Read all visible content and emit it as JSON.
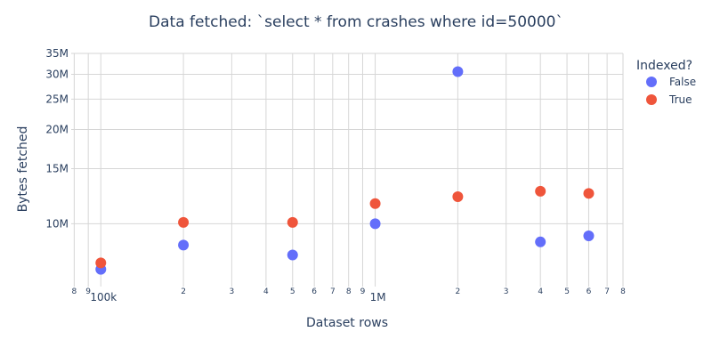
{
  "chart_data": {
    "type": "scatter",
    "title": "Data fetched: `select * from crashes where id=50000`",
    "xlabel": "Dataset rows",
    "ylabel": "Bytes fetched",
    "x_scale": "log",
    "y_scale": "log",
    "xlim": [
      78000,
      8000000
    ],
    "ylim": [
      6300000,
      35000000
    ],
    "x_ticks": [
      {
        "value": 80000,
        "label": "8",
        "minor": true
      },
      {
        "value": 90000,
        "label": "9",
        "minor": true
      },
      {
        "value": 100000,
        "label": "100k",
        "minor": false
      },
      {
        "value": 200000,
        "label": "2",
        "minor": true
      },
      {
        "value": 300000,
        "label": "3",
        "minor": true
      },
      {
        "value": 400000,
        "label": "4",
        "minor": true
      },
      {
        "value": 500000,
        "label": "5",
        "minor": true
      },
      {
        "value": 600000,
        "label": "6",
        "minor": true
      },
      {
        "value": 700000,
        "label": "7",
        "minor": true
      },
      {
        "value": 800000,
        "label": "8",
        "minor": true
      },
      {
        "value": 900000,
        "label": "9",
        "minor": true
      },
      {
        "value": 1000000,
        "label": "1M",
        "minor": false
      },
      {
        "value": 2000000,
        "label": "2",
        "minor": true
      },
      {
        "value": 3000000,
        "label": "3",
        "minor": true
      },
      {
        "value": 4000000,
        "label": "4",
        "minor": true
      },
      {
        "value": 5000000,
        "label": "5",
        "minor": true
      },
      {
        "value": 6000000,
        "label": "6",
        "minor": true
      },
      {
        "value": 7000000,
        "label": "7",
        "minor": true
      },
      {
        "value": 8000000,
        "label": "8",
        "minor": true
      }
    ],
    "y_ticks": [
      {
        "value": 10000000,
        "label": "10M"
      },
      {
        "value": 15000000,
        "label": "15M"
      },
      {
        "value": 20000000,
        "label": "20M"
      },
      {
        "value": 25000000,
        "label": "25M"
      },
      {
        "value": 30000000,
        "label": "30M"
      },
      {
        "value": 35000000,
        "label": "35M"
      }
    ],
    "legend": {
      "title": "Indexed?",
      "placement": "top-right"
    },
    "grid": true,
    "series": [
      {
        "name": "False",
        "color": "#636efa",
        "points": [
          {
            "x": 100000,
            "y": 7150000
          },
          {
            "x": 200000,
            "y": 8550000
          },
          {
            "x": 500000,
            "y": 7950000
          },
          {
            "x": 1000000,
            "y": 10000000
          },
          {
            "x": 2000000,
            "y": 30600000
          },
          {
            "x": 4000000,
            "y": 8750000
          },
          {
            "x": 6000000,
            "y": 9150000
          }
        ]
      },
      {
        "name": "True",
        "color": "#ef553b",
        "points": [
          {
            "x": 100000,
            "y": 7500000
          },
          {
            "x": 200000,
            "y": 10100000
          },
          {
            "x": 500000,
            "y": 10100000
          },
          {
            "x": 1000000,
            "y": 11600000
          },
          {
            "x": 2000000,
            "y": 12200000
          },
          {
            "x": 4000000,
            "y": 12700000
          },
          {
            "x": 6000000,
            "y": 12500000
          }
        ]
      }
    ]
  }
}
